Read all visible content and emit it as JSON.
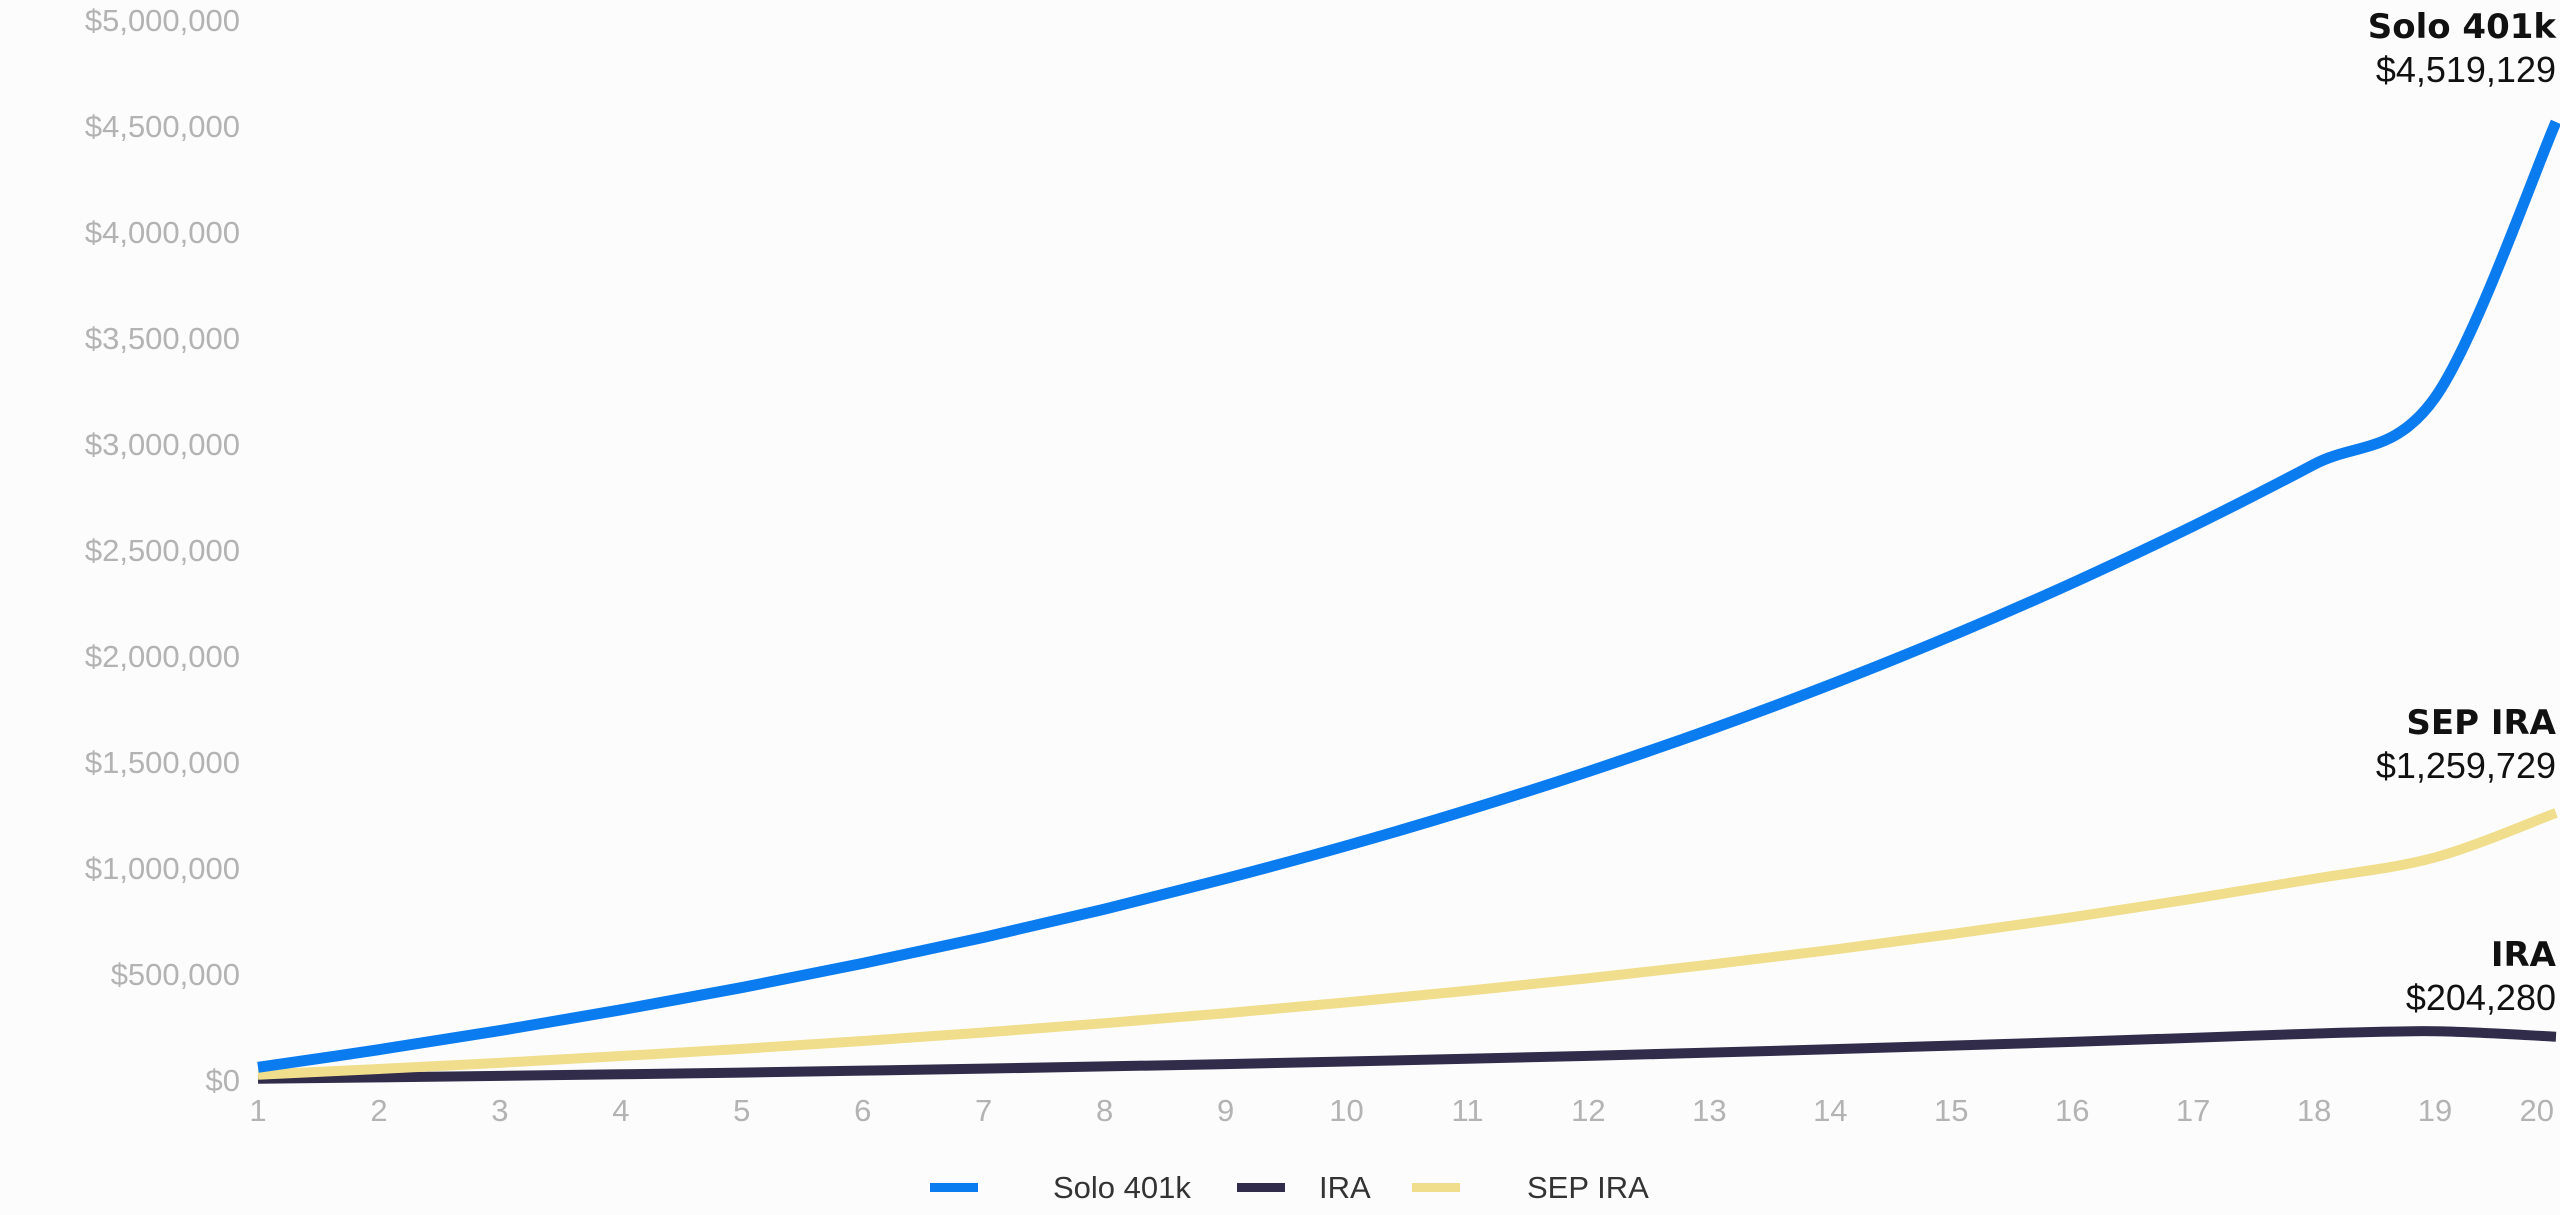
{
  "chart_data": {
    "type": "line",
    "title": "",
    "xlabel": "",
    "ylabel": "",
    "x": [
      1,
      2,
      3,
      4,
      5,
      6,
      7,
      8,
      9,
      10,
      11,
      12,
      13,
      14,
      15,
      16,
      17,
      18,
      19,
      20
    ],
    "xlim": [
      1,
      20
    ],
    "ylim": [
      0,
      5000000
    ],
    "y_ticks": [
      0,
      500000,
      1000000,
      1500000,
      2000000,
      2500000,
      3000000,
      3500000,
      4000000,
      4500000,
      5000000
    ],
    "y_tick_labels": [
      "$0",
      "$500,000",
      "$1,000,000",
      "$1,500,000",
      "$2,000,000",
      "$2,500,000",
      "$3,000,000",
      "$3,500,000",
      "$4,000,000",
      "$4,500,000",
      "$5,000,000"
    ],
    "x_tick_labels": [
      "1",
      "2",
      "3",
      "4",
      "5",
      "6",
      "7",
      "8",
      "9",
      "10",
      "11",
      "12",
      "13",
      "14",
      "15",
      "16",
      "17",
      "18",
      "19",
      "20"
    ],
    "grid": false,
    "legend_position": "bottom-center",
    "series": [
      {
        "name": "Solo 401k",
        "color": "#0a7cf0",
        "values": [
          60000,
          143000,
          233000,
          331000,
          436000,
          550000,
          673000,
          806000,
          950000,
          1105000,
          1273000,
          1455000,
          1652000,
          1865000,
          2095000,
          2344000,
          2613000,
          2904000,
          3219000,
          4519129
        ],
        "end_label_name": "Solo 401k",
        "end_label_value": "$4,519,129"
      },
      {
        "name": "IRA",
        "color": "#302c4a",
        "values": [
          6000,
          12500,
          19500,
          27000,
          35000,
          44000,
          53500,
          64000,
          75000,
          87000,
          100000,
          114000,
          129000,
          145000,
          162000,
          180000,
          199000,
          219000,
          230000,
          204280
        ],
        "end_label_name": "IRA",
        "end_label_value": "$204,280"
      },
      {
        "name": "SEP IRA",
        "color": "#f0de8c",
        "values": [
          25000,
          52000,
          81000,
          113000,
          147000,
          184000,
          224000,
          268000,
          315000,
          366000,
          421000,
          480000,
          544000,
          613000,
          688000,
          768000,
          855000,
          949000,
          1050000,
          1259729
        ],
        "end_label_name": "SEP IRA",
        "end_label_value": "$1,259,729"
      }
    ],
    "legend": [
      {
        "label": "Solo 401k",
        "color": "#0a7cf0"
      },
      {
        "label": "IRA",
        "color": "#302c4a"
      },
      {
        "label": "SEP IRA",
        "color": "#f0de8c"
      }
    ]
  }
}
